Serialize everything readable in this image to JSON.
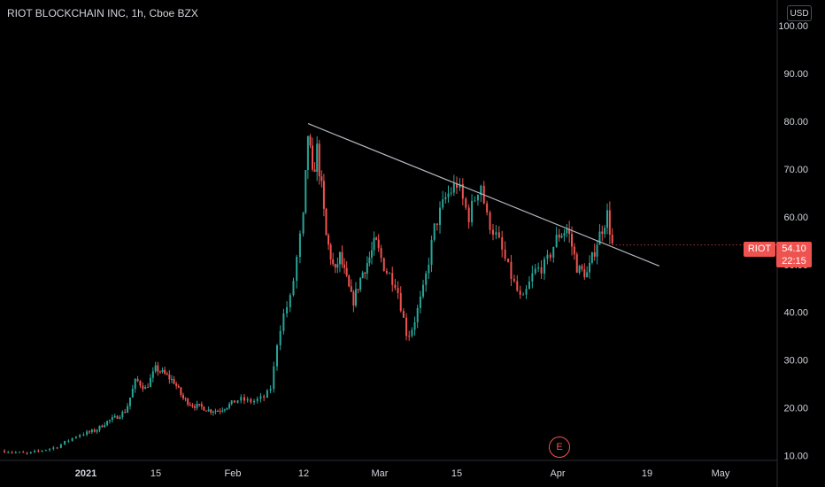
{
  "title": "RIOT BLOCKCHAIN INC, 1h, Cboe BZX",
  "currency": "USD",
  "symbol": "RIOT",
  "last_price": "54.10",
  "countdown": "22:15",
  "earnings_marker": "E",
  "colors": {
    "up": "#26a69a",
    "down": "#ef5350",
    "background": "#000000",
    "trendline": "#b2b5be"
  },
  "chart_data": {
    "type": "candlestick",
    "title": "RIOT BLOCKCHAIN INC, 1h, Cboe BZX",
    "x_ticks": [
      "2021",
      "15",
      "Feb",
      "12",
      "Mar",
      "15",
      "Apr",
      "19",
      "May"
    ],
    "y_ticks": [
      "100.00",
      "90.00",
      "80.00",
      "70.00",
      "60.00",
      "50.00",
      "40.00",
      "30.00",
      "20.00",
      "10.00"
    ],
    "ylim": [
      9,
      105
    ],
    "x_domain": [
      "2020-12-21",
      "2021-05-10"
    ],
    "tick_dates": [
      "2021-01-01",
      "2021-01-15",
      "2021-02-01",
      "2021-02-12",
      "2021-03-01",
      "2021-03-15",
      "2021-04-01",
      "2021-04-19",
      "2021-05-01"
    ],
    "close_path": [
      [
        "2020-12-21",
        11.0
      ],
      [
        "2020-12-24",
        10.4
      ],
      [
        "2020-12-28",
        11.8
      ],
      [
        "2020-12-31",
        14.4
      ],
      [
        "2021-01-03",
        15.3
      ],
      [
        "2021-01-05",
        17.0
      ],
      [
        "2021-01-07",
        18.0
      ],
      [
        "2021-01-09",
        19.4
      ],
      [
        "2021-01-11",
        25.9
      ],
      [
        "2021-01-13",
        24.0
      ],
      [
        "2021-01-15",
        28.3
      ],
      [
        "2021-01-17",
        27.0
      ],
      [
        "2021-01-19",
        25.5
      ],
      [
        "2021-01-21",
        22.0
      ],
      [
        "2021-01-23",
        20.6
      ],
      [
        "2021-01-25",
        20.2
      ],
      [
        "2021-01-27",
        19.4
      ],
      [
        "2021-01-29",
        19.5
      ],
      [
        "2021-01-31",
        20.5
      ],
      [
        "2021-02-02",
        21.8
      ],
      [
        "2021-02-04",
        21.3
      ],
      [
        "2021-02-06",
        22.3
      ],
      [
        "2021-02-07",
        24.5
      ],
      [
        "2021-02-08",
        35.0
      ],
      [
        "2021-02-09",
        40.0
      ],
      [
        "2021-02-10",
        43.0
      ],
      [
        "2021-02-11",
        52.0
      ],
      [
        "2021-02-12",
        60.0
      ],
      [
        "2021-02-13",
        78.0
      ],
      [
        "2021-02-14",
        68.0
      ],
      [
        "2021-02-15",
        74.0
      ],
      [
        "2021-02-16",
        66.0
      ],
      [
        "2021-02-17",
        56.0
      ],
      [
        "2021-02-19",
        48.0
      ],
      [
        "2021-02-20",
        52.0
      ],
      [
        "2021-02-23",
        42.0
      ],
      [
        "2021-02-25",
        48.0
      ],
      [
        "2021-02-27",
        52.0
      ],
      [
        "2021-02-28",
        55.0
      ],
      [
        "2021-03-02",
        49.0
      ],
      [
        "2021-03-04",
        46.0
      ],
      [
        "2021-03-06",
        34.8
      ],
      [
        "2021-03-07",
        37.0
      ],
      [
        "2021-03-09",
        45.0
      ],
      [
        "2021-03-11",
        58.0
      ],
      [
        "2021-03-13",
        64.0
      ],
      [
        "2021-03-15",
        67.0
      ],
      [
        "2021-03-17",
        60.0
      ],
      [
        "2021-03-19",
        67.5
      ],
      [
        "2021-03-20",
        60.0
      ],
      [
        "2021-03-22",
        55.0
      ],
      [
        "2021-03-24",
        48.0
      ],
      [
        "2021-03-26",
        42.0
      ],
      [
        "2021-03-28",
        48.5
      ],
      [
        "2021-03-30",
        50.0
      ],
      [
        "2021-04-01",
        56.0
      ],
      [
        "2021-04-03",
        57.5
      ],
      [
        "2021-04-05",
        49.0
      ],
      [
        "2021-04-07",
        48.0
      ],
      [
        "2021-04-09",
        55.0
      ],
      [
        "2021-04-11",
        60.5
      ],
      [
        "2021-04-12",
        54.1
      ]
    ],
    "trendline": {
      "start": [
        "2021-02-13",
        79.5
      ],
      "end": [
        "2021-04-21",
        49.7
      ]
    },
    "earnings_date": "2021-04-01",
    "last_price": 54.1
  }
}
